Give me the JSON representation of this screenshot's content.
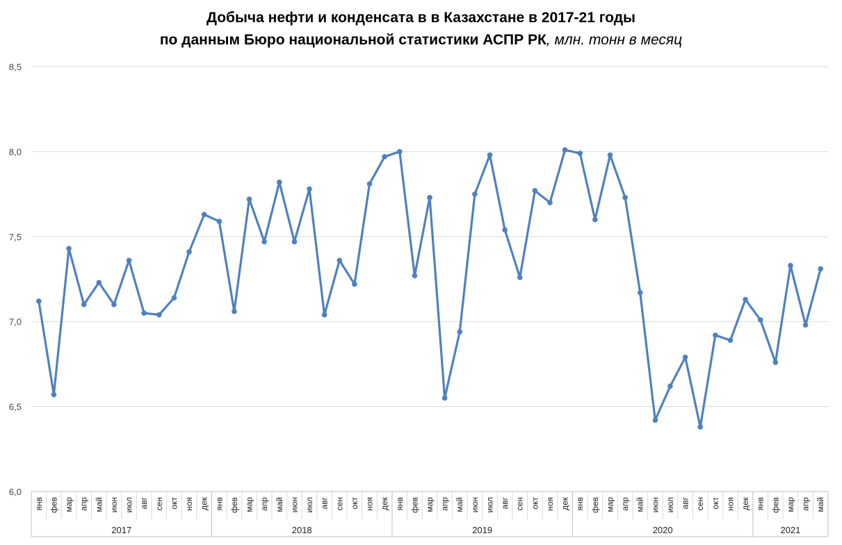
{
  "chart_data": {
    "type": "line",
    "title_line1": "Добыча нефти и конденсата в в Казахстане в 2017-21 годы",
    "title_line2": "по данным Бюро национальной статистики АСПР РК",
    "title_unit": ", млн. тонн в месяц",
    "ylim": [
      6.0,
      8.5
    ],
    "yticks": [
      "6,0",
      "6,5",
      "7,0",
      "7,5",
      "8,0",
      "8,5"
    ],
    "ytick_values": [
      6.0,
      6.5,
      7.0,
      7.5,
      8.0,
      8.5
    ],
    "grid": true,
    "color": "#4f81bd",
    "years": [
      {
        "label": "2017",
        "months": 12
      },
      {
        "label": "2018",
        "months": 12
      },
      {
        "label": "2019",
        "months": 12
      },
      {
        "label": "2020",
        "months": 12
      },
      {
        "label": "2021",
        "months": 5
      }
    ],
    "months": [
      "янв",
      "фев",
      "мар",
      "апр",
      "май",
      "июн",
      "июл",
      "авг",
      "сен",
      "окт",
      "ноя",
      "дек",
      "янв",
      "фев",
      "мар",
      "апр",
      "май",
      "июн",
      "июл",
      "авг",
      "сен",
      "окт",
      "ноя",
      "дек",
      "янв",
      "фев",
      "мар",
      "апр",
      "май",
      "июн",
      "июл",
      "авг",
      "сен",
      "окт",
      "ноя",
      "дек",
      "янв",
      "фев",
      "мар",
      "апр",
      "май",
      "июн",
      "июл",
      "авг",
      "сен",
      "окт",
      "ноя",
      "дек",
      "янв",
      "фев",
      "мар",
      "апр",
      "май"
    ],
    "values": [
      7.12,
      6.57,
      7.43,
      7.1,
      7.23,
      7.1,
      7.36,
      7.05,
      7.04,
      7.14,
      7.41,
      7.63,
      7.59,
      7.06,
      7.72,
      7.47,
      7.82,
      7.47,
      7.78,
      7.04,
      7.36,
      7.22,
      7.81,
      7.97,
      8.0,
      7.27,
      7.73,
      6.55,
      6.94,
      7.75,
      7.98,
      7.54,
      7.26,
      7.77,
      7.7,
      8.01,
      7.99,
      7.6,
      7.98,
      7.73,
      7.17,
      6.42,
      6.62,
      6.79,
      6.38,
      6.92,
      6.89,
      7.13,
      7.01,
      6.76,
      7.33,
      6.98,
      7.31
    ]
  }
}
